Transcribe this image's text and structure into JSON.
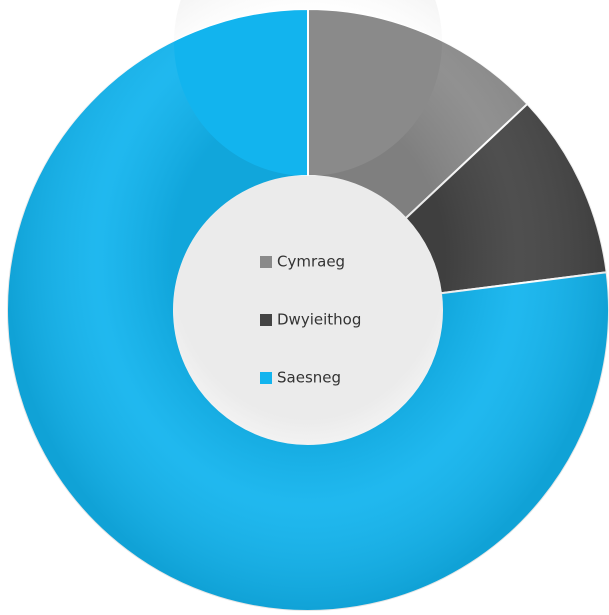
{
  "chart_data": {
    "type": "donut",
    "categories": [
      "Cymraeg",
      "Dwyieithog",
      "Saesneg"
    ],
    "values": [
      13,
      10,
      77
    ],
    "colors": [
      "#8a8a8a",
      "#444444",
      "#12b4ee"
    ],
    "legend": "center"
  }
}
